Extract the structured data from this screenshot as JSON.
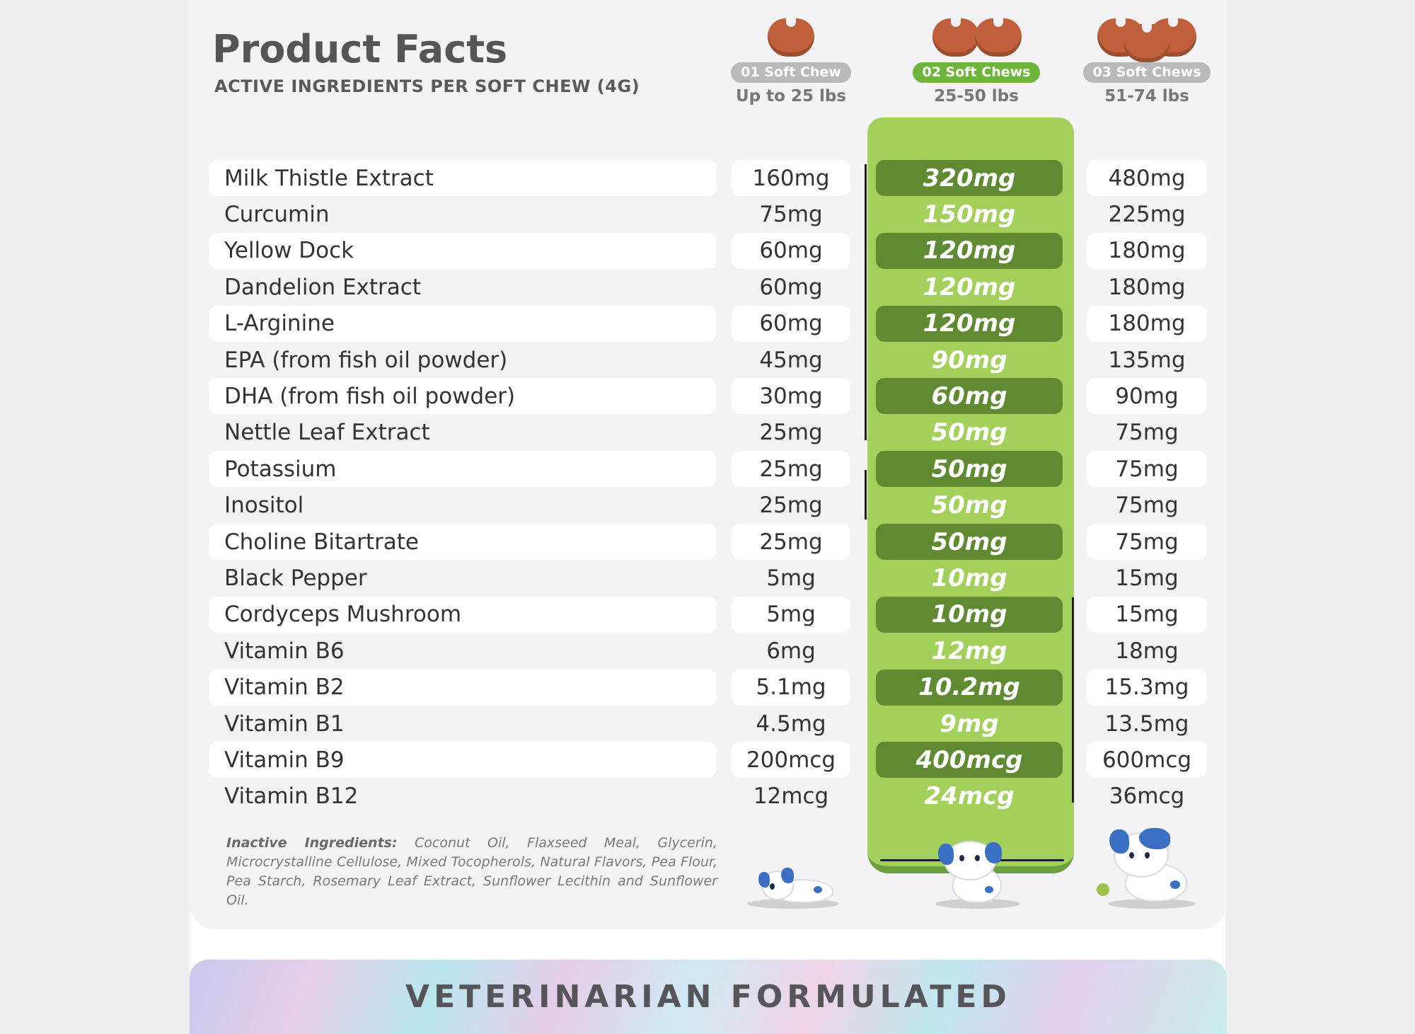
{
  "header": {
    "title": "Product Facts",
    "subtitle": "ACTIVE INGREDIENTS PER SOFT CHEW (4G)"
  },
  "columns": [
    {
      "pill": "01 Soft Chew",
      "weight": "Up to 25 lbs",
      "treat_count": 1
    },
    {
      "pill": "02 Soft Chews",
      "weight": "25-50 lbs",
      "treat_count": 2
    },
    {
      "pill": "03 Soft Chews",
      "weight": "51-74 lbs",
      "treat_count": 3
    }
  ],
  "ingredients": [
    {
      "name": "Milk Thistle Extract",
      "v1": "160mg",
      "v2": "320mg",
      "v3": "480mg"
    },
    {
      "name": "Curcumin",
      "v1": "75mg",
      "v2": "150mg",
      "v3": "225mg"
    },
    {
      "name": "Yellow Dock",
      "v1": "60mg",
      "v2": "120mg",
      "v3": "180mg"
    },
    {
      "name": "Dandelion Extract",
      "v1": "60mg",
      "v2": "120mg",
      "v3": "180mg"
    },
    {
      "name": "L-Arginine",
      "v1": "60mg",
      "v2": "120mg",
      "v3": "180mg"
    },
    {
      "name": "EPA (from fish oil powder)",
      "v1": "45mg",
      "v2": "90mg",
      "v3": "135mg"
    },
    {
      "name": "DHA (from fish oil powder)",
      "v1": "30mg",
      "v2": "60mg",
      "v3": "90mg"
    },
    {
      "name": "Nettle Leaf Extract",
      "v1": "25mg",
      "v2": "50mg",
      "v3": "75mg"
    },
    {
      "name": "Potassium",
      "v1": "25mg",
      "v2": "50mg",
      "v3": "75mg"
    },
    {
      "name": "Inositol",
      "v1": "25mg",
      "v2": "50mg",
      "v3": "75mg"
    },
    {
      "name": "Choline Bitartrate",
      "v1": "25mg",
      "v2": "50mg",
      "v3": "75mg"
    },
    {
      "name": "Black Pepper",
      "v1": "5mg",
      "v2": "10mg",
      "v3": "15mg"
    },
    {
      "name": "Cordyceps Mushroom",
      "v1": "5mg",
      "v2": "10mg",
      "v3": "15mg"
    },
    {
      "name": "Vitamin B6",
      "v1": "6mg",
      "v2": "12mg",
      "v3": "18mg"
    },
    {
      "name": "Vitamin B2",
      "v1": "5.1mg",
      "v2": "10.2mg",
      "v3": "15.3mg"
    },
    {
      "name": "Vitamin B1",
      "v1": "4.5mg",
      "v2": "9mg",
      "v3": "13.5mg"
    },
    {
      "name": "Vitamin B9",
      "v1": "200mcg",
      "v2": "400mcg",
      "v3": "600mcg"
    },
    {
      "name": "Vitamin B12",
      "v1": "12mcg",
      "v2": "24mcg",
      "v3": "36mcg"
    }
  ],
  "inactive": {
    "label": "Inactive Ingredients:",
    "text": "Coconut Oil, Flaxseed Meal, Glycerin, Microcrystalline Cellulose, Mixed Tocopherols, Natural Flavors, Pea Flour, Pea Starch, Rosemary Leaf Extract, Sunflower Lecithin and Sunflower Oil."
  },
  "banner": {
    "text": "VETERINARIAN FORMULATED"
  },
  "colors": {
    "highlight": "#a3cf5b",
    "highlight_dark": "#5f8a32",
    "treat": "#c0603a",
    "dog_spot": "#3a6fc4"
  },
  "icons": [
    "heart-treat-icon",
    "puppy-small-icon",
    "puppy-medium-icon",
    "puppy-large-icon"
  ]
}
